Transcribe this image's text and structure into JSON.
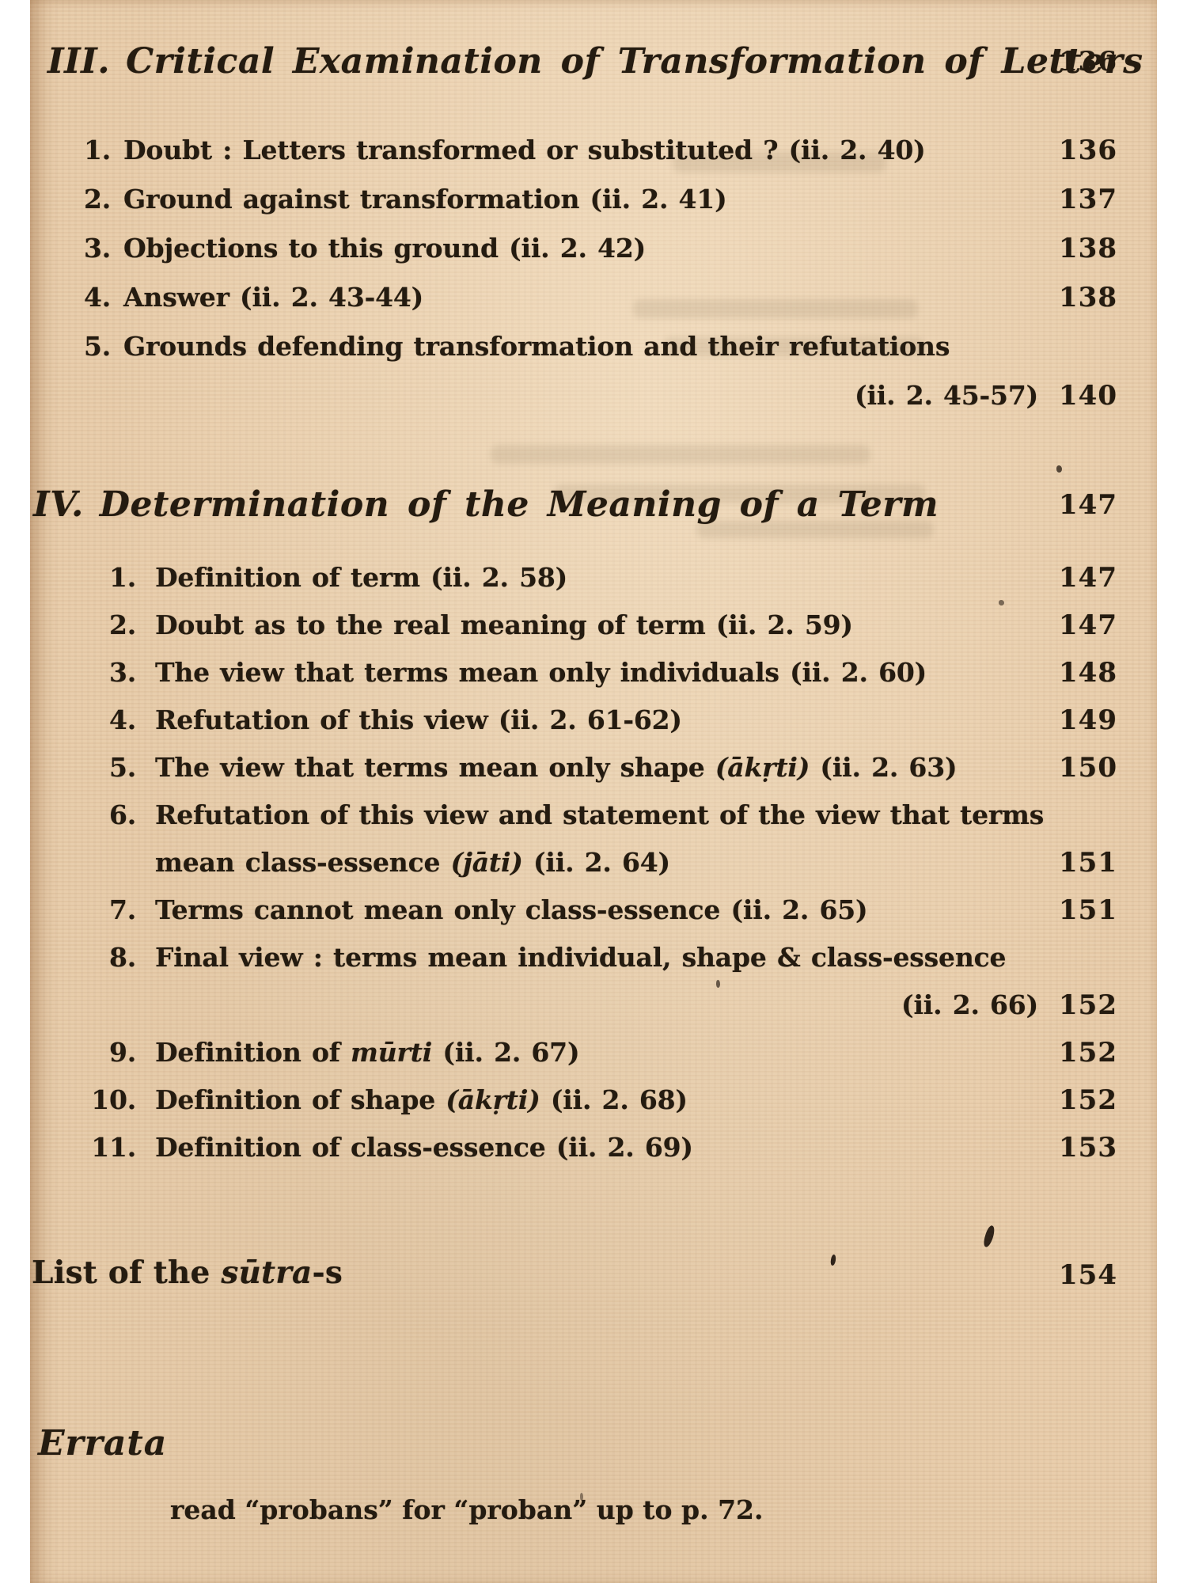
{
  "colors": {
    "page_background": "#e8cba8",
    "ink": "#241b10",
    "margin_white": "#ffffff"
  },
  "toc": {
    "sections": [
      {
        "number": "III.",
        "title": "Critical Examination of Transformation of Letters",
        "page": "136",
        "style": "sec-iii",
        "items": [
          {
            "num": "1.",
            "line1": [
              {
                "t": "Doubt : Letters transformed or substituted ? (ii. 2. 40)"
              }
            ],
            "page": "136"
          },
          {
            "num": "2.",
            "line1": [
              {
                "t": "Ground against transformation (ii. 2. 41)"
              }
            ],
            "page": "137"
          },
          {
            "num": "3.",
            "line1": [
              {
                "t": "Objections to this ground (ii. 2. 42)"
              }
            ],
            "page": "138"
          },
          {
            "num": "4.",
            "line1": [
              {
                "t": "Answer (ii. 2. 43-44)"
              }
            ],
            "page": "138"
          },
          {
            "num": "5.",
            "line1": [
              {
                "t": "Grounds defending transformation and their refutations"
              }
            ],
            "line2": {
              "runs": [
                {
                  "t": "(ii. 2. 45-57)"
                }
              ],
              "align": "right",
              "page": "140"
            }
          }
        ]
      },
      {
        "number": "IV.",
        "title": "Determination of the Meaning of a Term",
        "page": "147",
        "style": "sec-iv",
        "items": [
          {
            "num": "1.",
            "line1": [
              {
                "t": "Definition of term (ii. 2. 58)"
              }
            ],
            "page": "147"
          },
          {
            "num": "2.",
            "line1": [
              {
                "t": "Doubt as to the real meaning of term (ii. 2. 59)"
              }
            ],
            "page": "147"
          },
          {
            "num": "3.",
            "line1": [
              {
                "t": "The view that terms mean only individuals (ii. 2. 60)"
              }
            ],
            "page": "148"
          },
          {
            "num": "4.",
            "line1": [
              {
                "t": "Refutation of this view (ii. 2. 61-62)"
              }
            ],
            "page": "149"
          },
          {
            "num": "5.",
            "line1": [
              {
                "t": "The view that terms mean only shape "
              },
              {
                "t": "(ākṛti)",
                "i": true
              },
              {
                "t": " (ii. 2. 63)"
              }
            ],
            "page": "150"
          },
          {
            "num": "6.",
            "line1": [
              {
                "t": "Refutation of this view and statement of the view that terms"
              }
            ],
            "line2": {
              "runs": [
                {
                  "t": "mean class-essence "
                },
                {
                  "t": "(jāti)",
                  "i": true
                },
                {
                  "t": " (ii. 2. 64)"
                }
              ],
              "align": "left",
              "page": "151"
            }
          },
          {
            "num": "7.",
            "line1": [
              {
                "t": "Terms cannot mean only class-essence (ii. 2. 65)"
              }
            ],
            "page": "151"
          },
          {
            "num": "8.",
            "line1": [
              {
                "t": "Final view : terms mean individual, shape & class-essence"
              }
            ],
            "line2": {
              "runs": [
                {
                  "t": "(ii. 2. 66)"
                }
              ],
              "align": "right",
              "page": "152"
            }
          },
          {
            "num": "9.",
            "line1": [
              {
                "t": "Definition of "
              },
              {
                "t": "mūrti",
                "i": true
              },
              {
                "t": " (ii. 2. 67)"
              }
            ],
            "page": "152"
          },
          {
            "num": "10.",
            "line1": [
              {
                "t": "Definition of shape "
              },
              {
                "t": "(ākṛti)",
                "i": true
              },
              {
                "t": " (ii. 2. 68)"
              }
            ],
            "page": "152"
          },
          {
            "num": "11.",
            "line1": [
              {
                "t": "Definition of class-essence (ii. 2. 69)"
              }
            ],
            "page": "153"
          }
        ]
      }
    ],
    "list_line": {
      "runs": [
        {
          "t": "List of the "
        },
        {
          "t": "sūtra",
          "i": true
        },
        {
          "t": "-s"
        }
      ],
      "page": "154"
    }
  },
  "errata": {
    "heading": "Errata",
    "line": "read “probans” for “proban” up to p. 72."
  }
}
